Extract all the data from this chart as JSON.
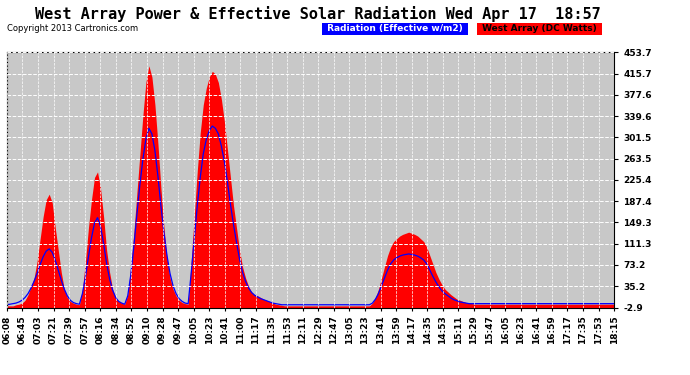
{
  "title": "West Array Power & Effective Solar Radiation Wed Apr 17  18:57",
  "copyright": "Copyright 2013 Cartronics.com",
  "legend_radiation": "Radiation (Effective w/m2)",
  "legend_west": "West Array (DC Watts)",
  "legend_radiation_bg": "#0000ff",
  "legend_west_bg": "#ff0000",
  "legend_radiation_text": "#ffffff",
  "legend_west_text": "#000000",
  "ylabel_right_values": [
    453.7,
    415.7,
    377.6,
    339.6,
    301.5,
    263.5,
    225.4,
    187.4,
    149.3,
    111.3,
    73.2,
    35.2,
    -2.9
  ],
  "ylim": [
    -2.9,
    453.7
  ],
  "bg_color": "#ffffff",
  "plot_bg_color": "#c8c8c8",
  "grid_color": "#ffffff",
  "title_fontsize": 11,
  "tick_fontsize": 6.5,
  "x_tick_labels": [
    "06:08",
    "06:45",
    "07:03",
    "07:21",
    "07:39",
    "07:57",
    "08:16",
    "08:34",
    "08:52",
    "09:10",
    "09:28",
    "09:47",
    "10:05",
    "10:23",
    "10:41",
    "11:00",
    "11:17",
    "11:35",
    "11:53",
    "12:11",
    "12:29",
    "12:47",
    "13:05",
    "13:23",
    "13:41",
    "13:59",
    "14:17",
    "14:35",
    "14:53",
    "15:11",
    "15:29",
    "15:47",
    "16:05",
    "16:23",
    "16:41",
    "16:59",
    "17:17",
    "17:35",
    "17:53",
    "18:15"
  ],
  "red_data": [
    0,
    0,
    0,
    2,
    3,
    5,
    10,
    20,
    35,
    50,
    80,
    120,
    160,
    190,
    200,
    185,
    140,
    100,
    60,
    30,
    15,
    8,
    5,
    3,
    2,
    30,
    80,
    140,
    190,
    230,
    240,
    210,
    160,
    100,
    60,
    30,
    15,
    8,
    5,
    3,
    20,
    70,
    130,
    200,
    270,
    340,
    400,
    430,
    410,
    360,
    290,
    210,
    140,
    85,
    50,
    30,
    18,
    10,
    6,
    4,
    3,
    80,
    160,
    240,
    310,
    360,
    390,
    410,
    420,
    415,
    400,
    370,
    330,
    280,
    230,
    180,
    140,
    100,
    70,
    50,
    35,
    25,
    20,
    18,
    15,
    12,
    10,
    8,
    5,
    3,
    2,
    1,
    0,
    0,
    0,
    0,
    0,
    0,
    0,
    0,
    0,
    0,
    0,
    0,
    0,
    0,
    0,
    0,
    0,
    0,
    0,
    0,
    0,
    0,
    0,
    0,
    0,
    0,
    0,
    0,
    0,
    5,
    15,
    30,
    50,
    70,
    90,
    105,
    115,
    120,
    125,
    128,
    130,
    132,
    130,
    128,
    125,
    120,
    115,
    105,
    90,
    75,
    60,
    48,
    38,
    30,
    25,
    20,
    16,
    12,
    10,
    8,
    6,
    5,
    4,
    3,
    3,
    3,
    3,
    3,
    3,
    3,
    3,
    3,
    3,
    3,
    3,
    3,
    3,
    3,
    3,
    3,
    3,
    3,
    3,
    3,
    3,
    3,
    3,
    3,
    3,
    3,
    3,
    3,
    3,
    3,
    3,
    3,
    3,
    3,
    3,
    3,
    3,
    3,
    3,
    3,
    3,
    3,
    3,
    3,
    3,
    3
  ],
  "blue_data": [
    2,
    3,
    4,
    5,
    7,
    10,
    15,
    22,
    32,
    44,
    58,
    74,
    88,
    98,
    102,
    96,
    82,
    64,
    46,
    30,
    18,
    10,
    6,
    4,
    3,
    22,
    52,
    88,
    122,
    148,
    158,
    142,
    112,
    76,
    48,
    28,
    15,
    8,
    5,
    3,
    18,
    55,
    105,
    162,
    216,
    262,
    298,
    318,
    308,
    278,
    232,
    178,
    130,
    90,
    58,
    36,
    22,
    13,
    8,
    5,
    4,
    58,
    118,
    178,
    230,
    272,
    298,
    314,
    322,
    318,
    308,
    286,
    258,
    222,
    182,
    146,
    114,
    84,
    60,
    44,
    32,
    24,
    19,
    16,
    13,
    11,
    9,
    7,
    5,
    4,
    3,
    2,
    2,
    2,
    2,
    2,
    2,
    2,
    2,
    2,
    2,
    2,
    2,
    2,
    2,
    2,
    2,
    2,
    2,
    2,
    2,
    2,
    2,
    2,
    2,
    2,
    2,
    2,
    2,
    2,
    2,
    5,
    12,
    22,
    36,
    50,
    64,
    75,
    82,
    86,
    89,
    91,
    92,
    93,
    92,
    91,
    89,
    86,
    82,
    75,
    64,
    53,
    43,
    34,
    27,
    22,
    18,
    14,
    11,
    9,
    7,
    6,
    5,
    4,
    4,
    4,
    4,
    4,
    4,
    4,
    4,
    4,
    4,
    4,
    4,
    4,
    4,
    4,
    4,
    4,
    4,
    4,
    4,
    4,
    4,
    4,
    4,
    4,
    4,
    4,
    4,
    4,
    4,
    4,
    4,
    4,
    4,
    4,
    4,
    4,
    4,
    4,
    4,
    4,
    4,
    4,
    4,
    4,
    4,
    4,
    4,
    4
  ]
}
